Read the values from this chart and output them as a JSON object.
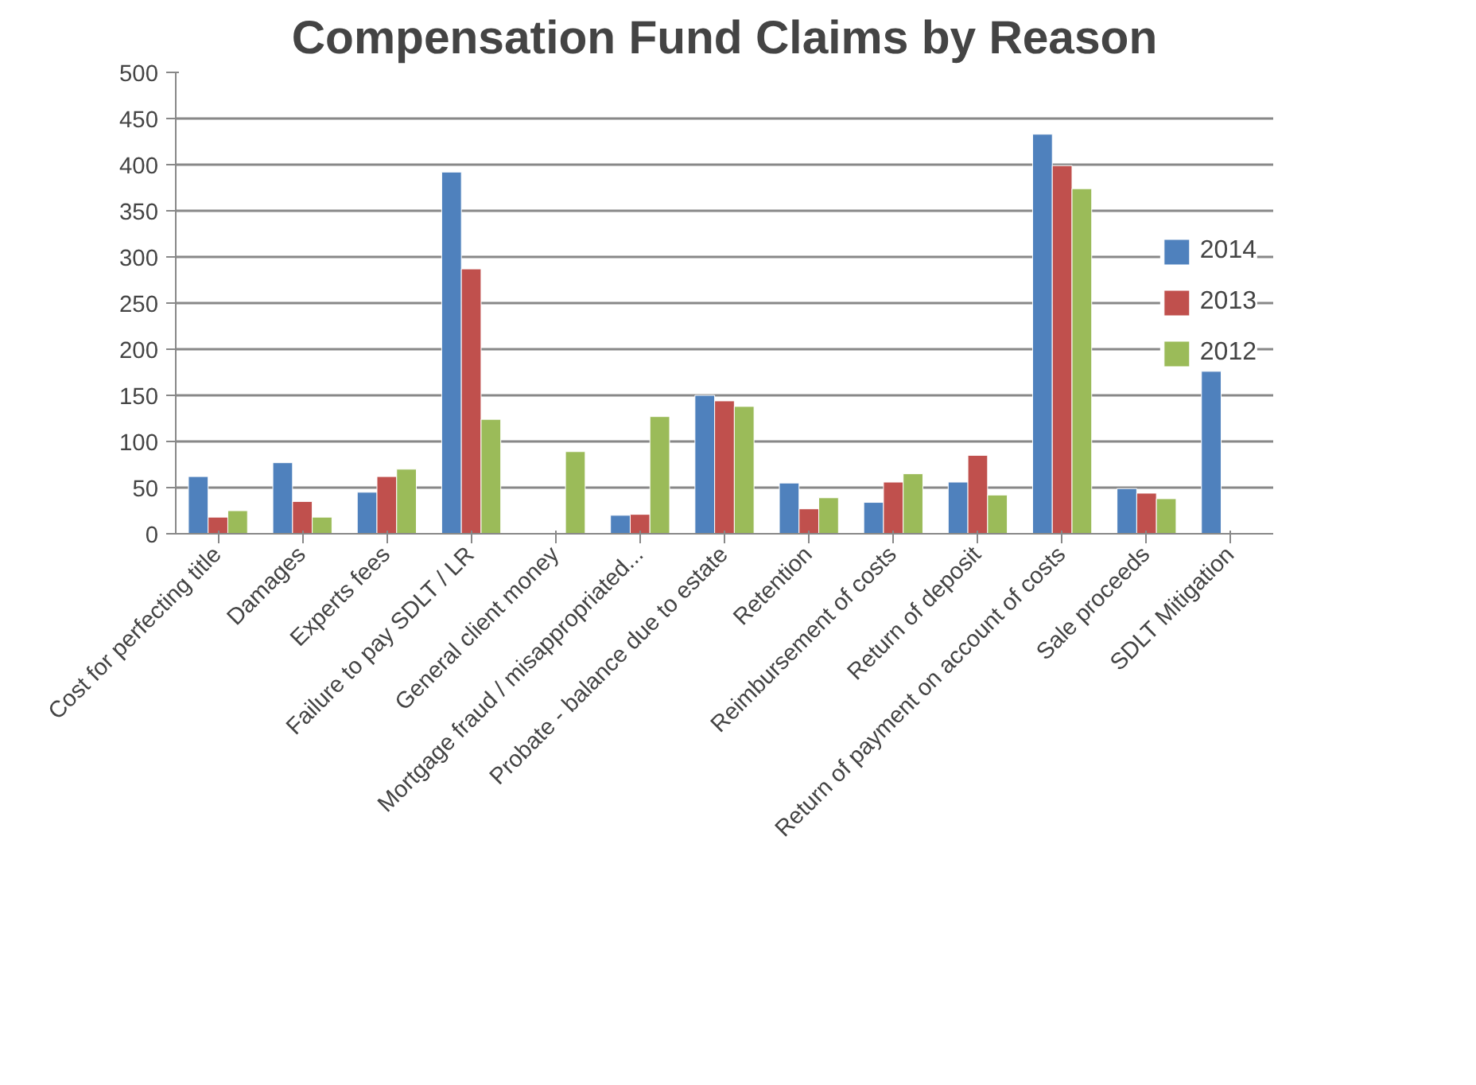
{
  "chart_data": {
    "type": "bar",
    "title": "Compensation Fund Claims by Reason",
    "categories": [
      "Cost for perfecting title",
      "Damages",
      "Experts fees",
      "Failure to pay SDLT / LR",
      "General client money",
      "Mortgage fraud / misappropriated...",
      "Probate - balance due to estate",
      "Retention",
      "Reimbursement of costs",
      "Return of deposit",
      "Return of payment on account of costs",
      "Sale proceeds",
      "SDLT Mitigation"
    ],
    "series": [
      {
        "name": "2014",
        "color": "#4f81bd",
        "values": [
          62,
          77,
          45,
          392,
          null,
          20,
          150,
          55,
          34,
          56,
          433,
          49,
          176
        ]
      },
      {
        "name": "2013",
        "color": "#c0504d",
        "values": [
          18,
          35,
          62,
          287,
          null,
          21,
          144,
          27,
          56,
          85,
          399,
          44,
          null
        ]
      },
      {
        "name": "2012",
        "color": "#9bbb59",
        "values": [
          25,
          18,
          70,
          124,
          89,
          127,
          138,
          39,
          65,
          42,
          374,
          38,
          null
        ]
      }
    ],
    "ylim": [
      0,
      500
    ],
    "yticks": [
      0,
      50,
      100,
      150,
      200,
      250,
      300,
      350,
      400,
      450,
      500
    ],
    "grid": "y",
    "legend": "right"
  }
}
